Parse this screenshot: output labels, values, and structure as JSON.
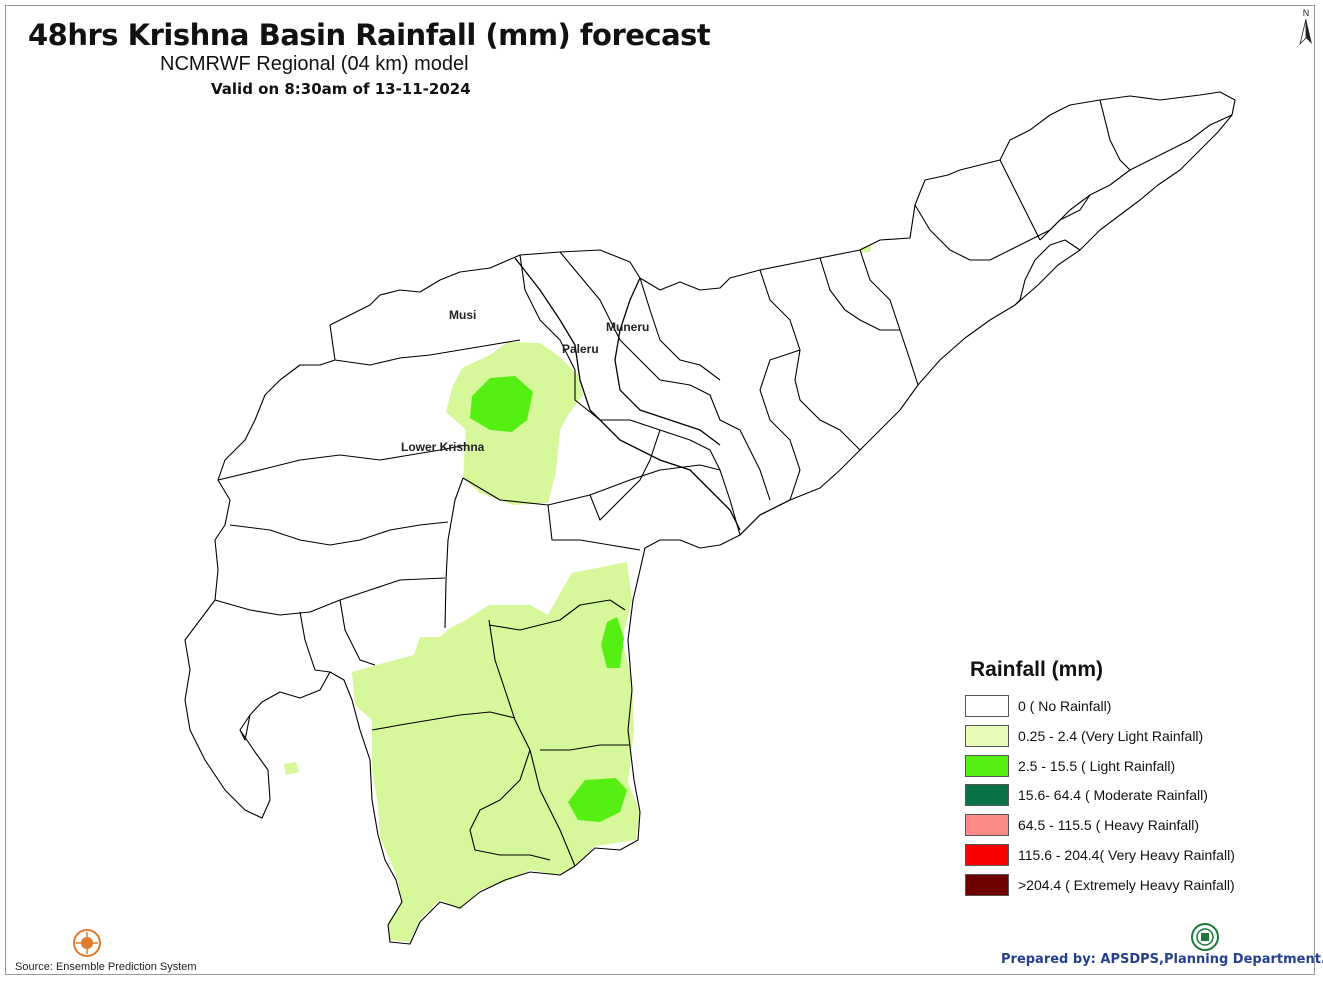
{
  "map": {
    "title": "48hrs Krishna Basin Rainfall (mm) forecast",
    "subtitle": "NCMRWF Regional (04 km) model",
    "valid": "Valid on 8:30am of 13-11-2024",
    "basin_labels": {
      "musi": "Musi",
      "muneru": "Muneru",
      "paleru": "Paleru",
      "lower_krishna": "Lower Krishna"
    },
    "north_arrow": "N",
    "north_icon": "north-arrow-icon"
  },
  "legend": {
    "title": "Rainfall (mm)",
    "items": [
      {
        "label": "0 ( No Rainfall)",
        "color": "#ffffff"
      },
      {
        "label": "0.25 - 2.4 (Very Light Rainfall)",
        "color": "#e6fcb8"
      },
      {
        "label": "2.5 - 15.5 ( Light Rainfall)",
        "color": "#55ef14"
      },
      {
        "label": "15.6- 64.4 ( Moderate Rainfall)",
        "color": "#0b7247"
      },
      {
        "label": "64.5 - 115.5 ( Heavy Rainfall)",
        "color": "#fb8a86"
      },
      {
        "label": "115.6 - 204.4( Very Heavy Rainfall)",
        "color": "#fb0000"
      },
      {
        "label": ">204.4 ( Extremely Heavy Rainfall)",
        "color": "#6e0000"
      }
    ]
  },
  "footer": {
    "source": "Source: Ensemble Prediction System",
    "prepared": "Prepared by: APSDPS,Planning Department.",
    "left_logo_icon": "apsdps-logo-icon",
    "right_logo_icon": "planning-dept-logo-icon"
  },
  "colors": {
    "very_light_fill": "#d7f79b",
    "light_fill": "#55ef14",
    "boundary": "#000000",
    "prepared_text": "#23408e"
  }
}
